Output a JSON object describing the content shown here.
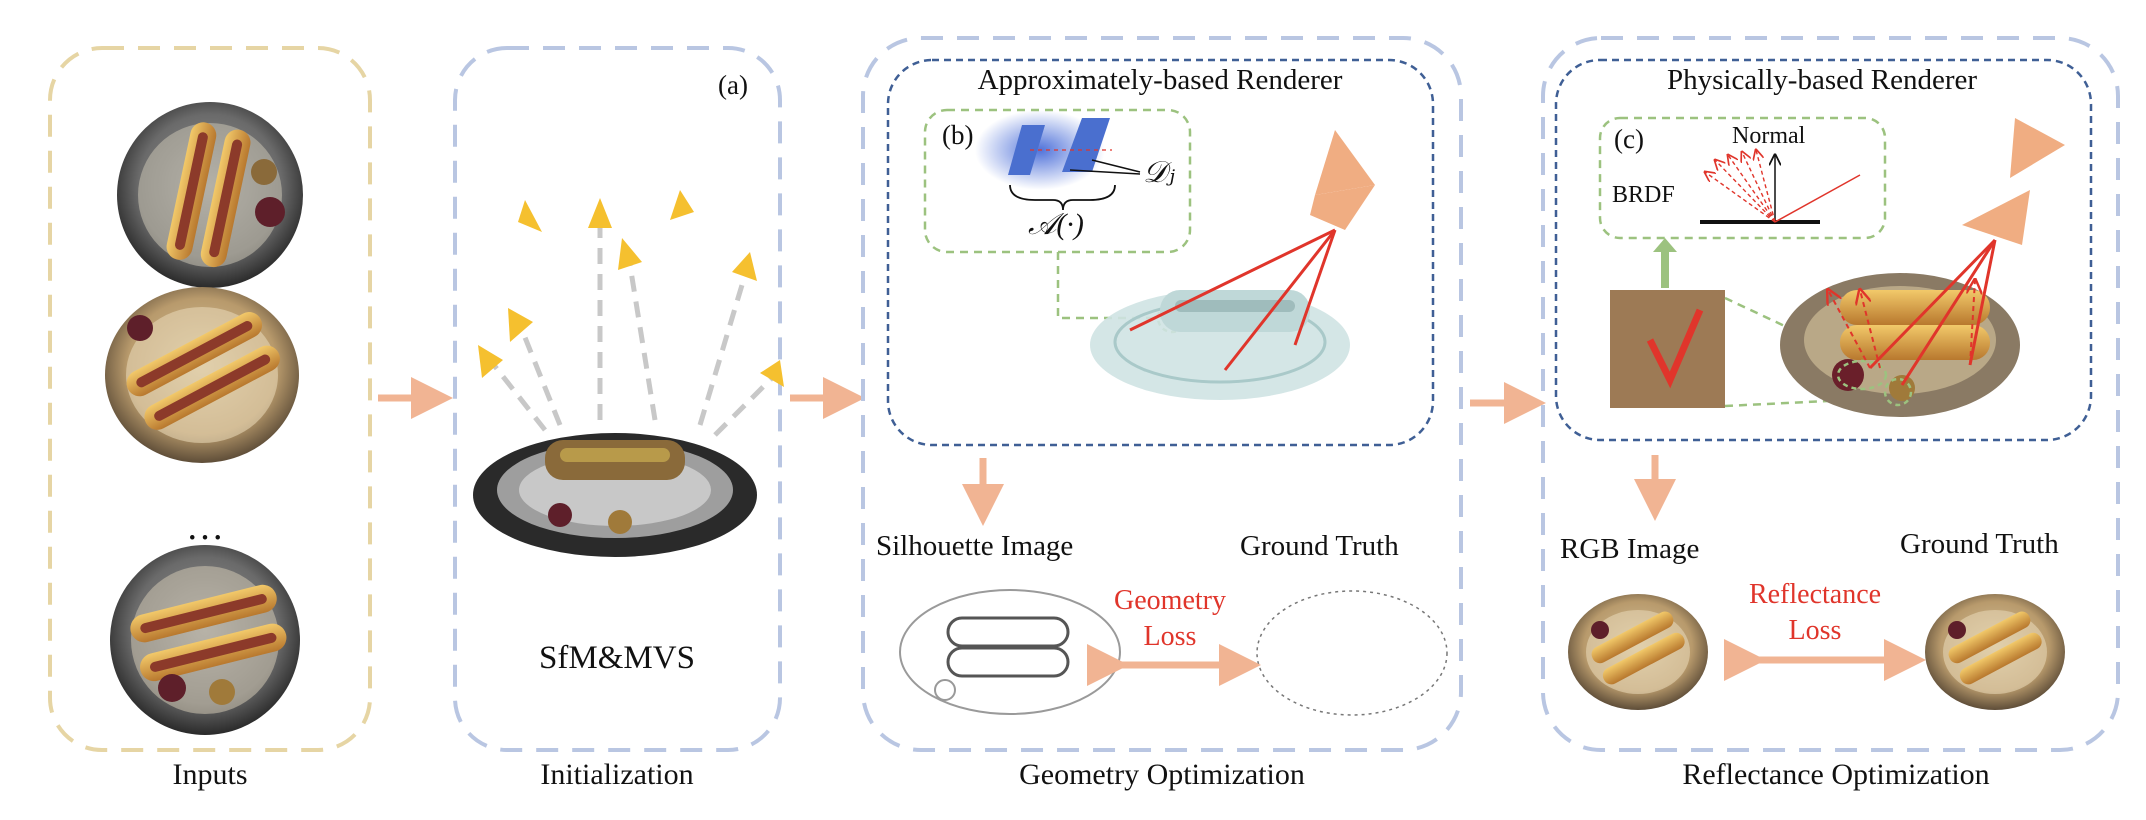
{
  "panels": {
    "inputs": {
      "caption": "Inputs",
      "ellipsis": "…"
    },
    "initialization": {
      "caption": "Initialization",
      "tag": "(a)",
      "method": "SfM&MVS"
    },
    "geometry": {
      "caption": "Geometry Optimization",
      "renderer_title": "Approximately-based Renderer",
      "inset_tag": "(b)",
      "math_d": "𝒟ⱼ",
      "math_a": "𝒜(·)",
      "left_image_label": "Silhouette Image",
      "right_image_label": "Ground Truth",
      "loss_line1": "Geometry",
      "loss_line2": "Loss"
    },
    "reflectance": {
      "caption": "Reflectance Optimization",
      "renderer_title": "Physically-based Renderer",
      "inset_tag": "(c)",
      "normal_label": "Normal",
      "brdf_label": "BRDF",
      "left_image_label": "RGB Image",
      "right_image_label": "Ground Truth",
      "loss_line1": "Reflectance",
      "loss_line2": "Loss"
    }
  },
  "colors": {
    "inputs_border": "#e6d5a4",
    "panel_border": "#b9c6e2",
    "renderer_border": "#3f5f95",
    "inset_border": "#9cc27f",
    "arrow": "#f1b493",
    "ray": "#e0352b",
    "camera": "#f0ad82",
    "loss_text": "#e0352b"
  }
}
